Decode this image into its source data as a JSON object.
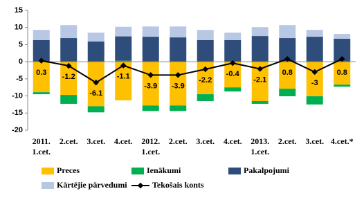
{
  "chart_data": {
    "type": "bar",
    "categories": [
      [
        "2011.",
        "1.cet."
      ],
      [
        "2.cet."
      ],
      [
        "3.cet."
      ],
      [
        "4.cet."
      ],
      [
        "2012.",
        "1.cet."
      ],
      [
        "2.cet."
      ],
      [
        "3.cet."
      ],
      [
        "4.cet."
      ],
      [
        "2013.",
        "1.cet."
      ],
      [
        "2.cet."
      ],
      [
        "3.cet."
      ],
      [
        "4.cet.*"
      ]
    ],
    "series": [
      {
        "name": "Preces",
        "color": "#ffc000",
        "values": [
          -8.9,
          -9.7,
          -13.0,
          -11.3,
          -12.8,
          -12.8,
          -9.5,
          -7.5,
          -11.5,
          -7.9,
          -10.1,
          -6.7
        ]
      },
      {
        "name": "Ienākumi",
        "color": "#00b050",
        "values": [
          -0.6,
          -2.6,
          -1.8,
          0.3,
          -1.6,
          -1.6,
          -2.0,
          -1.2,
          -0.8,
          -2.2,
          -2.4,
          -0.6
        ]
      },
      {
        "name": "Pakalpojumi",
        "color": "#2e4d7b",
        "values": [
          6.3,
          6.9,
          5.9,
          7.1,
          7.3,
          7.1,
          6.3,
          6.3,
          7.5,
          6.9,
          7.3,
          6.7
        ]
      },
      {
        "name": "Kārtējie pārvedumi",
        "color": "#b8c7e4",
        "values": [
          3.0,
          3.8,
          2.6,
          2.8,
          3.0,
          3.2,
          3.0,
          2.2,
          2.6,
          3.8,
          2.0,
          1.4
        ]
      },
      {
        "name": "Tekošais konts",
        "type": "line",
        "color": "#000000",
        "values": [
          0.3,
          -1.2,
          -6.1,
          -1.1,
          -3.9,
          -3.9,
          -2.2,
          -0.4,
          -2.1,
          0.8,
          -3.0,
          0.8
        ]
      }
    ],
    "ylim": [
      -20,
      15
    ],
    "yticks": [
      -20,
      -15,
      -10,
      -5,
      0,
      5,
      10,
      15
    ],
    "grid": false
  }
}
